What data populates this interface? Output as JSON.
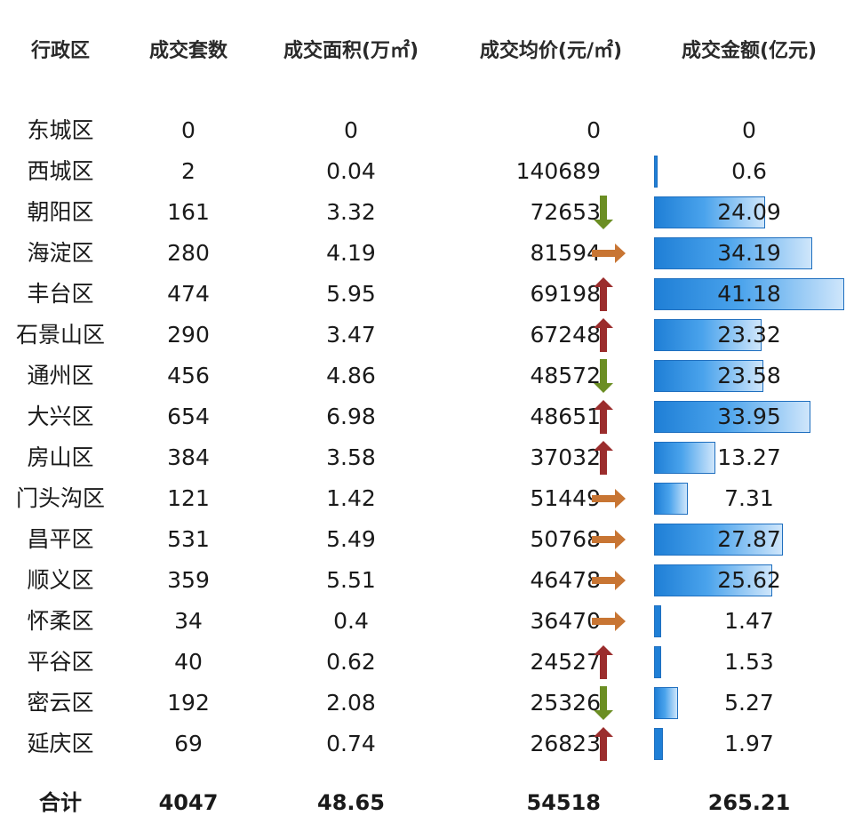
{
  "headers": {
    "district": "行政区",
    "units": "成交套数",
    "area": "成交面积(万㎡)",
    "avg_price": "成交均价(元/㎡)",
    "amount": "成交金额(亿元)"
  },
  "rows": [
    {
      "district": "东城区",
      "units": "0",
      "area": "0",
      "price": "0",
      "trend": "",
      "amount": "0",
      "bar": 0
    },
    {
      "district": "西城区",
      "units": "2",
      "area": "0.04",
      "price": "140689",
      "trend": "",
      "amount": "0.6",
      "bar": 0.6
    },
    {
      "district": "朝阳区",
      "units": "161",
      "area": "3.32",
      "price": "72653",
      "trend": "down",
      "amount": "24.09",
      "bar": 24.09
    },
    {
      "district": "海淀区",
      "units": "280",
      "area": "4.19",
      "price": "81594",
      "trend": "flat",
      "amount": "34.19",
      "bar": 34.19
    },
    {
      "district": "丰台区",
      "units": "474",
      "area": "5.95",
      "price": "69198",
      "trend": "up",
      "amount": "41.18",
      "bar": 41.18
    },
    {
      "district": "石景山区",
      "units": "290",
      "area": "3.47",
      "price": "67248",
      "trend": "up",
      "amount": "23.32",
      "bar": 23.32
    },
    {
      "district": "通州区",
      "units": "456",
      "area": "4.86",
      "price": "48572",
      "trend": "down",
      "amount": "23.58",
      "bar": 23.58
    },
    {
      "district": "大兴区",
      "units": "654",
      "area": "6.98",
      "price": "48651",
      "trend": "up",
      "amount": "33.95",
      "bar": 33.95
    },
    {
      "district": "房山区",
      "units": "384",
      "area": "3.58",
      "price": "37032",
      "trend": "up",
      "amount": "13.27",
      "bar": 13.27
    },
    {
      "district": "门头沟区",
      "units": "121",
      "area": "1.42",
      "price": "51449",
      "trend": "flat",
      "amount": "7.31",
      "bar": 7.31
    },
    {
      "district": "昌平区",
      "units": "531",
      "area": "5.49",
      "price": "50768",
      "trend": "flat",
      "amount": "27.87",
      "bar": 27.87
    },
    {
      "district": "顺义区",
      "units": "359",
      "area": "5.51",
      "price": "46478",
      "trend": "flat",
      "amount": "25.62",
      "bar": 25.62
    },
    {
      "district": "怀柔区",
      "units": "34",
      "area": "0.4",
      "price": "36470",
      "trend": "flat",
      "amount": "1.47",
      "bar": 1.47
    },
    {
      "district": "平谷区",
      "units": "40",
      "area": "0.62",
      "price": "24527",
      "trend": "up",
      "amount": "1.53",
      "bar": 1.53
    },
    {
      "district": "密云区",
      "units": "192",
      "area": "2.08",
      "price": "25326",
      "trend": "down",
      "amount": "5.27",
      "bar": 5.27
    },
    {
      "district": "延庆区",
      "units": "69",
      "area": "0.74",
      "price": "26823",
      "trend": "up",
      "amount": "1.97",
      "bar": 1.97
    }
  ],
  "total": {
    "label": "合计",
    "units": "4047",
    "area": "48.65",
    "price": "54518",
    "amount": "265.21"
  },
  "colors": {
    "bar": "#1f7fd6",
    "arrow_up": "#9b2d2d",
    "arrow_down": "#6b8e23",
    "arrow_flat": "#c87533"
  }
}
